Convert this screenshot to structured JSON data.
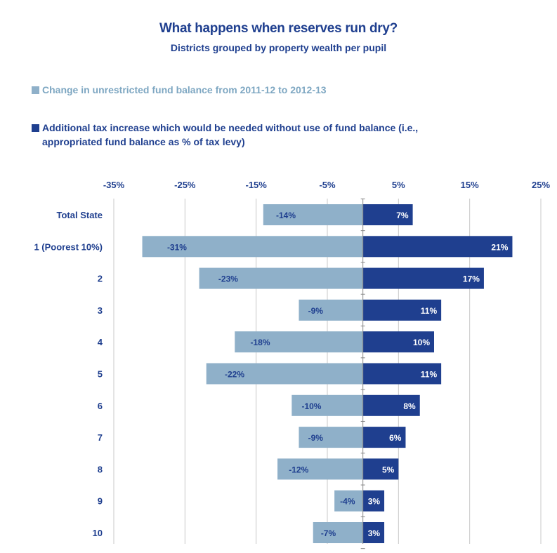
{
  "chart_data": {
    "type": "bar",
    "orientation": "horizontal",
    "title": "What happens when reserves run dry?",
    "subtitle": "Districts grouped by property wealth per pupil",
    "categories": [
      "Total State",
      "1 (Poorest 10%)",
      "2",
      "3",
      "4",
      "5",
      "6",
      "7",
      "8",
      "9",
      "10"
    ],
    "series": [
      {
        "name": "Change in unrestricted fund balance from 2011-12 to 2012-13",
        "values": [
          -14,
          -31,
          -23,
          -9,
          -18,
          -22,
          -10,
          -9,
          -12,
          -4,
          -7
        ],
        "labels": [
          "-14%",
          "-31%",
          "-23%",
          "-9%",
          "-18%",
          "-22%",
          "-10%",
          "-9%",
          "-12%",
          "-4%",
          "-7%"
        ],
        "color": "#8fb0c9"
      },
      {
        "name": "Additional tax increase which would be needed without use of fund balance (i.e., appropriated fund balance as % of tax levy)",
        "values": [
          7,
          21,
          17,
          11,
          10,
          11,
          8,
          6,
          5,
          3,
          3
        ],
        "labels": [
          "7%",
          "21%",
          "17%",
          "11%",
          "10%",
          "11%",
          "8%",
          "6%",
          "5%",
          "3%",
          "3%"
        ],
        "color": "#1f3f8f"
      }
    ],
    "xlim": [
      -35,
      25
    ],
    "xticks": [
      -35,
      -25,
      -15,
      -5,
      5,
      15,
      25
    ],
    "xtick_labels": [
      "-35%",
      "-25%",
      "-15%",
      "-5%",
      "5%",
      "15%",
      "25%"
    ],
    "grid": true,
    "legend_position": "top"
  },
  "legend": {
    "item1": "Change in unrestricted fund balance from 2011-12 to 2012-13",
    "item2_line1": "Additional tax increase which would be needed without use of fund balance (i.e.,",
    "item2_line2": "appropriated fund balance as % of tax levy)"
  },
  "colors": {
    "series1": "#8fb0c9",
    "series2": "#1f3f8f",
    "text": "#1f3f8f",
    "grid": "#c8c8c8"
  }
}
